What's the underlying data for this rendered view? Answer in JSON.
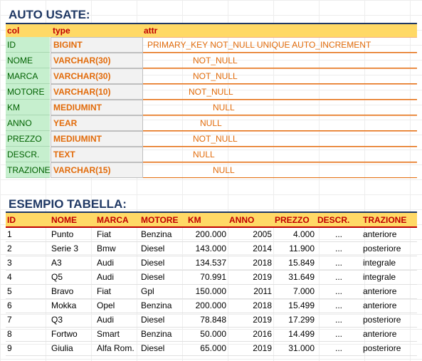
{
  "section1_title": "AUTO USATE:",
  "section2_title": "ESEMPIO TABELLA:",
  "schema_headers": {
    "col": "col",
    "type": "type",
    "attr": "attr"
  },
  "schema_rows": [
    {
      "col": "ID",
      "type": "BIGINT",
      "attr": "PRIMARY_KEY NOT_NULL UNIQUE AUTO_INCREMENT"
    },
    {
      "col": "NOME",
      "type": "VARCHAR(30)",
      "attr": "NOT_NULL"
    },
    {
      "col": "MARCA",
      "type": "VARCHAR(30)",
      "attr": "NOT_NULL"
    },
    {
      "col": "MOTORE",
      "type": "VARCHAR(10)",
      "attr": "NOT_NULL"
    },
    {
      "col": "KM",
      "type": "MEDIUMINT",
      "attr": "NULL"
    },
    {
      "col": "ANNO",
      "type": "YEAR",
      "attr": "NULL"
    },
    {
      "col": "PREZZO",
      "type": "MEDIUMINT",
      "attr": "NOT_NULL"
    },
    {
      "col": "DESCR.",
      "type": "TEXT",
      "attr": "NULL"
    },
    {
      "col": "TRAZIONE",
      "type": "VARCHAR(15)",
      "attr": "NULL"
    }
  ],
  "table_headers": [
    "ID",
    "NOME",
    "MARCA",
    "MOTORE",
    "KM",
    "ANNO",
    "PREZZO",
    "DESCR.",
    "TRAZIONE"
  ],
  "table_rows": [
    [
      "1",
      "Punto",
      "Fiat",
      "Benzina",
      "200.000",
      "2005",
      "4.000",
      "...",
      "anteriore"
    ],
    [
      "2",
      "Serie 3",
      "Bmw",
      "Diesel",
      "143.000",
      "2014",
      "11.900",
      "...",
      "posteriore"
    ],
    [
      "3",
      "A3",
      "Audi",
      "Diesel",
      "134.537",
      "2018",
      "15.849",
      "...",
      "integrale"
    ],
    [
      "4",
      "Q5",
      "Audi",
      "Diesel",
      "70.991",
      "2019",
      "31.649",
      "...",
      "integrale"
    ],
    [
      "5",
      "Bravo",
      "Fiat",
      "Gpl",
      "150.000",
      "2011",
      "7.000",
      "...",
      "anteriore"
    ],
    [
      "6",
      "Mokka",
      "Opel",
      "Benzina",
      "200.000",
      "2018",
      "15.499",
      "...",
      "anteriore"
    ],
    [
      "7",
      "Q3",
      "Audi",
      "Diesel",
      "78.848",
      "2019",
      "17.299",
      "...",
      "posteriore"
    ],
    [
      "8",
      "Fortwo",
      "Smart",
      "Benzina",
      "50.000",
      "2016",
      "14.499",
      "...",
      "anteriore"
    ],
    [
      "9",
      "Giulia",
      "Alfa Rom.",
      "Diesel",
      "65.000",
      "2019",
      "31.000",
      "...",
      "posteriore"
    ]
  ],
  "colors": {
    "title": "#1f3864",
    "header_fill": "#ffd966",
    "header_text": "#c00000",
    "col_fill": "#c6efce",
    "type_text": "#e26b0a"
  }
}
